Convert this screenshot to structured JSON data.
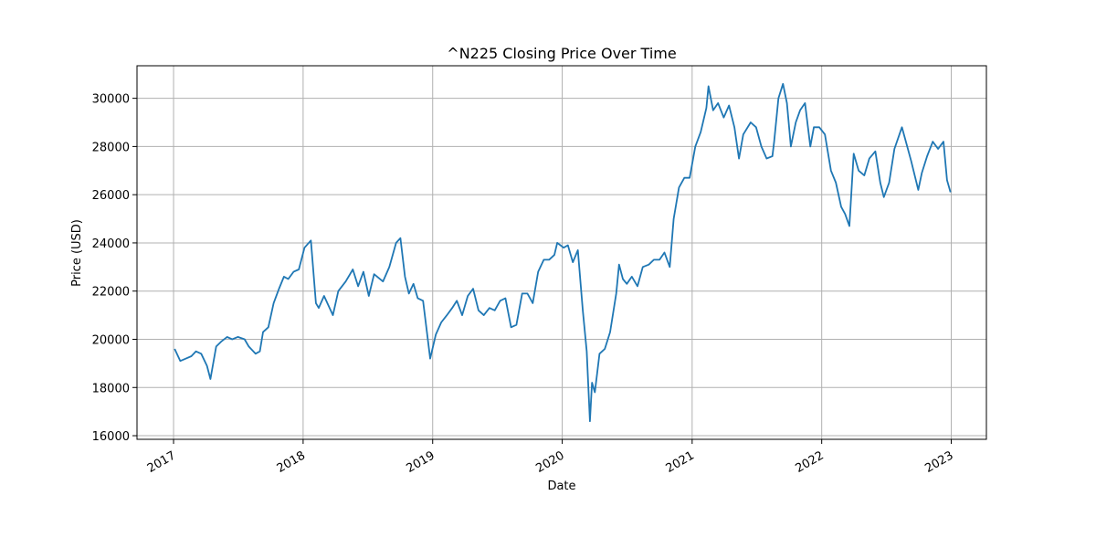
{
  "chart_data": {
    "type": "line",
    "title": "^N225 Closing Price Over Time",
    "xlabel": "Date",
    "ylabel": "Price (USD)",
    "x_ticks": [
      "2017",
      "2018",
      "2019",
      "2020",
      "2021",
      "2022",
      "2023"
    ],
    "y_ticks": [
      "16000",
      "18000",
      "20000",
      "22000",
      "24000",
      "26000",
      "28000",
      "30000"
    ],
    "xlim": [
      "2016-09-20",
      "2023-04-10"
    ],
    "ylim": [
      15850,
      31350
    ],
    "grid": true,
    "colors": {
      "series": "#1f77b4",
      "grid": "#b0b0b0"
    },
    "series": [
      {
        "name": "",
        "x": [
          "2017-01-04",
          "2017-01-20",
          "2017-02-05",
          "2017-02-20",
          "2017-03-05",
          "2017-03-20",
          "2017-04-05",
          "2017-04-15",
          "2017-05-01",
          "2017-05-15",
          "2017-06-01",
          "2017-06-15",
          "2017-07-01",
          "2017-07-20",
          "2017-08-01",
          "2017-08-20",
          "2017-09-01",
          "2017-09-10",
          "2017-09-25",
          "2017-10-10",
          "2017-10-25",
          "2017-11-08",
          "2017-11-20",
          "2017-12-05",
          "2017-12-20",
          "2018-01-05",
          "2018-01-23",
          "2018-02-06",
          "2018-02-14",
          "2018-03-01",
          "2018-03-26",
          "2018-04-10",
          "2018-05-01",
          "2018-05-21",
          "2018-06-05",
          "2018-06-20",
          "2018-07-05",
          "2018-07-20",
          "2018-08-14",
          "2018-09-01",
          "2018-09-20",
          "2018-10-02",
          "2018-10-15",
          "2018-10-26",
          "2018-11-08",
          "2018-11-20",
          "2018-12-05",
          "2018-12-25",
          "2019-01-10",
          "2019-01-25",
          "2019-02-10",
          "2019-02-25",
          "2019-03-10",
          "2019-03-25",
          "2019-04-10",
          "2019-04-25",
          "2019-05-10",
          "2019-05-25",
          "2019-06-10",
          "2019-06-25",
          "2019-07-10",
          "2019-07-25",
          "2019-08-10",
          "2019-08-25",
          "2019-09-10",
          "2019-09-25",
          "2019-10-10",
          "2019-10-25",
          "2019-11-10",
          "2019-11-25",
          "2019-12-10",
          "2019-12-18",
          "2020-01-05",
          "2020-01-17",
          "2020-01-31",
          "2020-02-14",
          "2020-02-28",
          "2020-03-10",
          "2020-03-19",
          "2020-03-25",
          "2020-04-02",
          "2020-04-15",
          "2020-04-30",
          "2020-05-15",
          "2020-06-01",
          "2020-06-09",
          "2020-06-20",
          "2020-07-01",
          "2020-07-15",
          "2020-07-31",
          "2020-08-15",
          "2020-09-01",
          "2020-09-15",
          "2020-10-01",
          "2020-10-15",
          "2020-10-30",
          "2020-11-10",
          "2020-11-25",
          "2020-12-10",
          "2020-12-25",
          "2021-01-10",
          "2021-01-25",
          "2021-02-10",
          "2021-02-16",
          "2021-03-01",
          "2021-03-15",
          "2021-03-31",
          "2021-04-15",
          "2021-04-30",
          "2021-05-13",
          "2021-05-25",
          "2021-06-15",
          "2021-06-30",
          "2021-07-15",
          "2021-07-30",
          "2021-08-15",
          "2021-08-20",
          "2021-09-01",
          "2021-09-14",
          "2021-09-25",
          "2021-10-06",
          "2021-10-20",
          "2021-11-01",
          "2021-11-15",
          "2021-11-30",
          "2021-12-10",
          "2021-12-25",
          "2022-01-10",
          "2022-01-27",
          "2022-02-10",
          "2022-02-25",
          "2022-03-08",
          "2022-03-20",
          "2022-04-01",
          "2022-04-15",
          "2022-05-01",
          "2022-05-15",
          "2022-06-01",
          "2022-06-15",
          "2022-06-25",
          "2022-07-10",
          "2022-07-25",
          "2022-08-15",
          "2022-08-30",
          "2022-09-10",
          "2022-09-30",
          "2022-10-10",
          "2022-10-25",
          "2022-11-10",
          "2022-11-25",
          "2022-12-10",
          "2022-12-20",
          "2022-12-30"
        ],
        "y": [
          19600,
          19100,
          19200,
          19300,
          19500,
          19400,
          18900,
          18350,
          19700,
          19900,
          20100,
          20000,
          20100,
          20000,
          19700,
          19400,
          19500,
          20300,
          20500,
          21500,
          22100,
          22600,
          22500,
          22800,
          22900,
          23800,
          24100,
          21500,
          21300,
          21800,
          21000,
          22000,
          22400,
          22900,
          22200,
          22800,
          21800,
          22700,
          22400,
          23000,
          24000,
          24200,
          22600,
          21900,
          22300,
          21700,
          21600,
          19200,
          20200,
          20700,
          21000,
          21300,
          21600,
          21000,
          21800,
          22100,
          21200,
          21000,
          21300,
          21200,
          21600,
          21700,
          20500,
          20600,
          21900,
          21900,
          21500,
          22800,
          23300,
          23300,
          23500,
          24000,
          23800,
          23900,
          23200,
          23700,
          21200,
          19500,
          16600,
          18200,
          17800,
          19400,
          19600,
          20300,
          21900,
          23100,
          22500,
          22300,
          22600,
          22200,
          23000,
          23100,
          23300,
          23300,
          23600,
          23000,
          25000,
          26300,
          26700,
          26700,
          28000,
          28600,
          29600,
          30500,
          29500,
          29800,
          29200,
          29700,
          28800,
          27500,
          28500,
          29000,
          28800,
          28000,
          27500,
          27600,
          28200,
          30000,
          30600,
          29800,
          28000,
          29000,
          29500,
          29800,
          28000,
          28800,
          28800,
          28500,
          27000,
          26500,
          25500,
          25200,
          24700,
          27700,
          27000,
          26800,
          27500,
          27800,
          26500,
          25900,
          26500,
          27900,
          28800,
          28000,
          27400,
          26200,
          26900,
          27600,
          28200,
          27900,
          28200,
          26600,
          26100
        ]
      }
    ]
  }
}
